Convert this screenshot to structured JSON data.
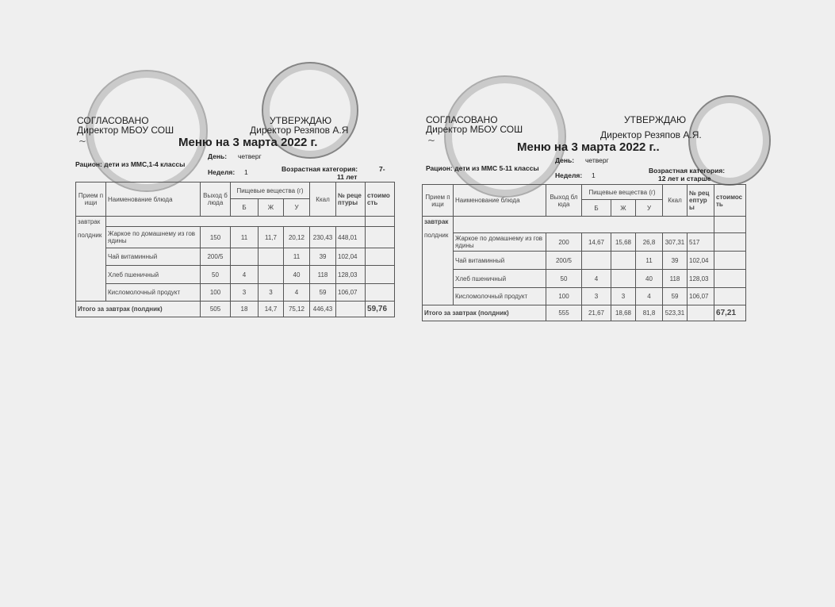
{
  "menus": [
    {
      "agreed": "СОГЛАСОВАНО",
      "agreed_by": "Директор МБОУ СОШ",
      "approve": "УТВЕРЖДАЮ",
      "approved_by": "Директор Резяпов А.Я",
      "title": "Меню на 3 марта 2022 г.",
      "ration": "Рацион: дети из ММС,1-4 классы",
      "day_label": "День:",
      "day": "четверг",
      "week_label": "Неделя:",
      "week": "1",
      "age_label": "Возрастная категория:",
      "age_a": "7-",
      "age_b": "11 лет",
      "headers": {
        "meal": "Прием пищи",
        "name": "Наименование блюда",
        "yield": "Выход блюда",
        "nutrients": "Пищевые вещества (г)",
        "b": "Б",
        "zh": "Ж",
        "u": "У",
        "kcal": "Ккал",
        "recipe": "№ рецептуры",
        "cost": "стоимость"
      },
      "meal_1": "завтрак",
      "meal_2": "полдник",
      "rows": [
        {
          "name": "Жаркое по домашнему из говядины",
          "yield": "150",
          "b": "11",
          "zh": "11,7",
          "u": "20,12",
          "kcal": "230,43",
          "recipe": "448,01",
          "cost": ""
        },
        {
          "name": "Чай витаминный",
          "yield": "200/5",
          "b": "",
          "zh": "",
          "u": "11",
          "kcal": "39",
          "recipe": "102,04",
          "cost": ""
        },
        {
          "name": "Хлеб пшеничный",
          "yield": "50",
          "b": "4",
          "zh": "",
          "u": "40",
          "kcal": "118",
          "recipe": "128,03",
          "cost": ""
        },
        {
          "name": "Кисломолочный продукт",
          "yield": "100",
          "b": "3",
          "zh": "3",
          "u": "4",
          "kcal": "59",
          "recipe": "106,07",
          "cost": ""
        }
      ],
      "total": {
        "name": "Итого за завтрак (полдник)",
        "yield": "505",
        "b": "18",
        "zh": "14,7",
        "u": "75,12",
        "kcal": "446,43",
        "recipe": "",
        "cost": "59,76"
      }
    },
    {
      "agreed": "СОГЛАСОВАНО",
      "agreed_by": "Директор МБОУ СОШ",
      "approve": "УТВЕРЖДАЮ",
      "approved_by": "Директор Резяпов А.Я.",
      "title": "Меню на 3 марта 2022 г..",
      "ration": "Рацион: дети из ММС 5-11 классы",
      "day_label": "День:",
      "day": "четверг",
      "week_label": "Неделя:",
      "week": "1",
      "age_label": "Возрастная категория:",
      "age_a": "",
      "age_b": "12 лет и старше",
      "headers": {
        "meal": "Прием пищи",
        "name": "Наименование блюда",
        "yield": "Выход блюда",
        "nutrients": "Пищевые вещества (г)",
        "b": "Б",
        "zh": "Ж",
        "u": "У",
        "kcal": "Ккал",
        "recipe": "№ рецептуры",
        "cost": "стоимость"
      },
      "meal_1": "завтрак",
      "meal_2": "полдник",
      "rows": [
        {
          "name": "Жаркое по домашнему из говядины",
          "yield": "200",
          "b": "14,67",
          "zh": "15,68",
          "u": "26,8",
          "kcal": "307,31",
          "recipe": "517",
          "cost": ""
        },
        {
          "name": "Чай витаминный",
          "yield": "200/5",
          "b": "",
          "zh": "",
          "u": "11",
          "kcal": "39",
          "recipe": "102,04",
          "cost": ""
        },
        {
          "name": "Хлеб пшеничный",
          "yield": "50",
          "b": "4",
          "zh": "",
          "u": "40",
          "kcal": "118",
          "recipe": "128,03",
          "cost": ""
        },
        {
          "name": "Кисломолочный продукт",
          "yield": "100",
          "b": "3",
          "zh": "3",
          "u": "4",
          "kcal": "59",
          "recipe": "106,07",
          "cost": ""
        }
      ],
      "total": {
        "name": "Итого за завтрак (полдник)",
        "yield": "555",
        "b": "21,67",
        "zh": "18,68",
        "u": "81,8",
        "kcal": "523,31",
        "recipe": "",
        "cost": "67,21"
      }
    }
  ]
}
